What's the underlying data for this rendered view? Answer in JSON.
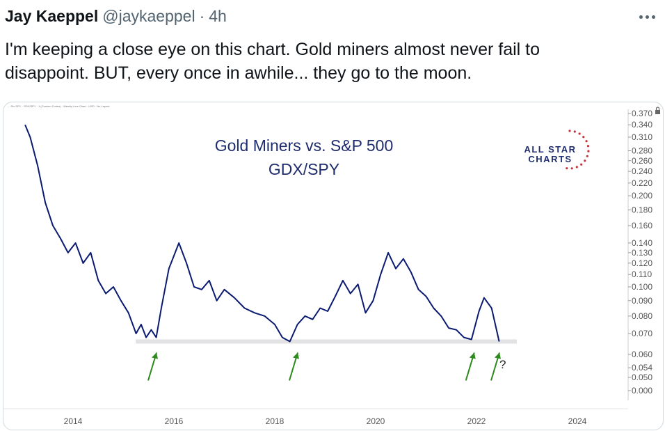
{
  "tweet": {
    "author_name": "Jay Kaeppel",
    "author_handle": "@jaykaeppel",
    "separator": "·",
    "timestamp": "4h",
    "more_icon": "ellipsis-icon",
    "text_line1": "I'm keeping a close eye on this chart. Gold miners almost never fail to",
    "text_line2": "disappoint. BUT, every once in awhile... they go to the moon."
  },
  "chart_data": {
    "type": "line",
    "header_note": "... Div SPY · GDX/SPY · 1 (Custom Codes) · Weekly Line Chart · USD · No Layout",
    "title": "Gold Miners vs. S&P 500",
    "subtitle": "GDX/SPY",
    "logo": {
      "line1": "ALL STAR",
      "line2": "CHARTS"
    },
    "y_scale": "log",
    "y_ticks": [
      "0.370",
      "0.340",
      "0.310",
      "0.280",
      "0.260",
      "0.240",
      "0.220",
      "0.200",
      "0.180",
      "0.160",
      "0.140",
      "0.130",
      "0.120",
      "0.110",
      "0.100",
      "0.090",
      "0.080",
      "0.070",
      "0.060",
      "0.054",
      "0.050",
      "0.000"
    ],
    "x_ticks": [
      "2014",
      "2016",
      "2018",
      "2020",
      "2022",
      "2024"
    ],
    "x_range": [
      2013.0,
      2025.3
    ],
    "support_level": 0.066,
    "annotation": "?",
    "arrow_years": [
      2015.6,
      2018.4,
      2021.9,
      2022.4
    ],
    "series": [
      {
        "x": [
          2013.05,
          2013.15,
          2013.3,
          2013.45,
          2013.6,
          2013.75,
          2013.9,
          2014.05,
          2014.2,
          2014.35,
          2014.5,
          2014.65,
          2014.8,
          2014.95,
          2015.1,
          2015.25,
          2015.35,
          2015.45,
          2015.55,
          2015.65,
          2015.75,
          2015.9,
          2016.1,
          2016.25,
          2016.4,
          2016.55,
          2016.7,
          2016.85,
          2017.0,
          2017.2,
          2017.4,
          2017.6,
          2017.8,
          2018.0,
          2018.15,
          2018.3,
          2018.45,
          2018.6,
          2018.75,
          2018.9,
          2019.05,
          2019.2,
          2019.35,
          2019.5,
          2019.65,
          2019.8,
          2019.95,
          2020.1,
          2020.25,
          2020.4,
          2020.55,
          2020.7,
          2020.85,
          2021.0,
          2021.15,
          2021.3,
          2021.45,
          2021.6,
          2021.75,
          2021.9,
          2022.05,
          2022.15,
          2022.3,
          2022.45
        ],
        "y": [
          0.34,
          0.31,
          0.25,
          0.19,
          0.16,
          0.145,
          0.13,
          0.14,
          0.12,
          0.13,
          0.105,
          0.095,
          0.1,
          0.09,
          0.082,
          0.07,
          0.075,
          0.068,
          0.072,
          0.068,
          0.085,
          0.115,
          0.14,
          0.12,
          0.1,
          0.098,
          0.105,
          0.09,
          0.098,
          0.092,
          0.085,
          0.082,
          0.08,
          0.075,
          0.068,
          0.066,
          0.075,
          0.08,
          0.078,
          0.085,
          0.083,
          0.093,
          0.105,
          0.095,
          0.102,
          0.082,
          0.09,
          0.11,
          0.13,
          0.115,
          0.124,
          0.112,
          0.098,
          0.093,
          0.085,
          0.08,
          0.073,
          0.072,
          0.068,
          0.067,
          0.083,
          0.092,
          0.085,
          0.066
        ]
      }
    ],
    "colors": {
      "line": "#0a1a70",
      "band": "#e2e2e4",
      "arrow": "#2e8a1e",
      "axis_text": "#555555",
      "title": "#1f2d6e",
      "logo": "#1f2d6e",
      "stars": "#c9303a"
    }
  }
}
